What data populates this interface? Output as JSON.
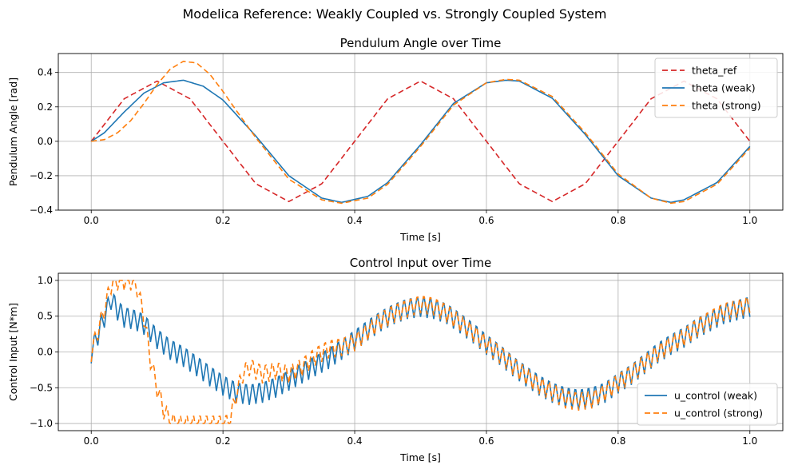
{
  "figure": {
    "suptitle": "Modelica Reference: Weakly Coupled vs. Strongly Coupled System"
  },
  "colors": {
    "ref": "#d62728",
    "weak": "#1f77b4",
    "strong": "#ff7f0e",
    "grid": "#b0b0b0",
    "axis": "#000000"
  },
  "chart_data": [
    {
      "type": "line",
      "title": "Pendulum Angle over Time",
      "xlabel": "Time [s]",
      "ylabel": "Pendulum Angle [rad]",
      "xlim": [
        -0.05,
        1.05
      ],
      "ylim": [
        -0.4,
        0.51
      ],
      "xticks": [
        0.0,
        0.2,
        0.4,
        0.6,
        0.8,
        1.0
      ],
      "xtick_labels": [
        "0.0",
        "0.2",
        "0.4",
        "0.6",
        "0.8",
        "1.0"
      ],
      "yticks": [
        -0.4,
        -0.2,
        0.0,
        0.2,
        0.4
      ],
      "ytick_labels": [
        "−0.4",
        "−0.2",
        "0.0",
        "0.2",
        "0.4"
      ],
      "grid": true,
      "legend_position": "upper right",
      "series": [
        {
          "name": "theta_ref",
          "style": "dashed",
          "color": "#d62728",
          "x": [
            0,
            0.05,
            0.1,
            0.15,
            0.2,
            0.25,
            0.3,
            0.35,
            0.4,
            0.45,
            0.5,
            0.55,
            0.6,
            0.65,
            0.7,
            0.75,
            0.8,
            0.85,
            0.9,
            0.95,
            1.0
          ],
          "y": [
            0,
            0.247,
            0.35,
            0.247,
            0,
            -0.247,
            -0.35,
            -0.247,
            0,
            0.247,
            0.35,
            0.247,
            0,
            -0.247,
            -0.35,
            -0.247,
            0,
            0.247,
            0.35,
            0.247,
            0
          ]
        },
        {
          "name": "theta (weak)",
          "style": "solid",
          "color": "#1f77b4",
          "x": [
            0,
            0.02,
            0.05,
            0.08,
            0.11,
            0.14,
            0.17,
            0.2,
            0.25,
            0.3,
            0.35,
            0.38,
            0.42,
            0.45,
            0.5,
            0.55,
            0.6,
            0.63,
            0.65,
            0.7,
            0.75,
            0.8,
            0.85,
            0.88,
            0.9,
            0.95,
            1.0
          ],
          "y": [
            0,
            0.05,
            0.17,
            0.28,
            0.34,
            0.355,
            0.32,
            0.24,
            0.03,
            -0.2,
            -0.33,
            -0.355,
            -0.32,
            -0.24,
            -0.02,
            0.22,
            0.34,
            0.355,
            0.35,
            0.25,
            0.04,
            -0.2,
            -0.33,
            -0.355,
            -0.34,
            -0.24,
            -0.03
          ]
        },
        {
          "name": "theta (strong)",
          "style": "dashed",
          "color": "#ff7f0e",
          "x": [
            0,
            0.02,
            0.04,
            0.06,
            0.08,
            0.1,
            0.12,
            0.14,
            0.16,
            0.18,
            0.2,
            0.22,
            0.25,
            0.3,
            0.35,
            0.38,
            0.42,
            0.45,
            0.5,
            0.55,
            0.6,
            0.63,
            0.65,
            0.7,
            0.75,
            0.8,
            0.85,
            0.88,
            0.9,
            0.95,
            1.0
          ],
          "y": [
            0,
            0.01,
            0.05,
            0.12,
            0.22,
            0.33,
            0.42,
            0.465,
            0.455,
            0.39,
            0.29,
            0.18,
            0.02,
            -0.22,
            -0.34,
            -0.36,
            -0.33,
            -0.25,
            -0.03,
            0.21,
            0.34,
            0.36,
            0.355,
            0.26,
            0.05,
            -0.19,
            -0.33,
            -0.36,
            -0.35,
            -0.25,
            -0.04
          ]
        }
      ]
    },
    {
      "type": "line",
      "title": "Control Input over Time",
      "xlabel": "Time [s]",
      "ylabel": "Control Input [N*m]",
      "xlim": [
        -0.05,
        1.05
      ],
      "ylim": [
        -1.1,
        1.1
      ],
      "xticks": [
        0.0,
        0.2,
        0.4,
        0.6,
        0.8,
        1.0
      ],
      "xtick_labels": [
        "0.0",
        "0.2",
        "0.4",
        "0.6",
        "0.8",
        "1.0"
      ],
      "yticks": [
        -1.0,
        -0.5,
        0.0,
        0.5,
        1.0
      ],
      "ytick_labels": [
        "−1.0",
        "−0.5",
        "0.0",
        "0.5",
        "1.0"
      ],
      "grid": true,
      "legend_position": "lower right",
      "series": [
        {
          "name": "u_control (weak)",
          "style": "solid",
          "color": "#1f77b4",
          "x": [
            0,
            0.02,
            0.03,
            0.04,
            0.05,
            0.06,
            0.07,
            0.08,
            0.09,
            0.1,
            0.12,
            0.14,
            0.16,
            0.18,
            0.2,
            0.22,
            0.24,
            0.26,
            0.28,
            0.3,
            0.32,
            0.34,
            0.36,
            0.38,
            0.4,
            0.42,
            0.44,
            0.46,
            0.48,
            0.5,
            0.52,
            0.54,
            0.56,
            0.58,
            0.6,
            0.62,
            0.64,
            0.66,
            0.68,
            0.7,
            0.72,
            0.74,
            0.76,
            0.78,
            0.8,
            0.82,
            0.84,
            0.86,
            0.88,
            0.9,
            0.92,
            0.94,
            0.96,
            0.98,
            1.0
          ],
          "y": [
            0,
            0.5,
            0.75,
            0.6,
            0.5,
            0.48,
            0.45,
            0.4,
            0.3,
            0.2,
            0.05,
            -0.05,
            -0.18,
            -0.32,
            -0.45,
            -0.55,
            -0.58,
            -0.55,
            -0.48,
            -0.38,
            -0.28,
            -0.18,
            -0.08,
            0.05,
            0.18,
            0.32,
            0.45,
            0.55,
            0.62,
            0.65,
            0.62,
            0.55,
            0.42,
            0.28,
            0.12,
            -0.02,
            -0.18,
            -0.32,
            -0.45,
            -0.55,
            -0.62,
            -0.65,
            -0.62,
            -0.55,
            -0.42,
            -0.3,
            -0.15,
            0.0,
            0.12,
            0.22,
            0.35,
            0.45,
            0.55,
            0.6,
            0.65
          ],
          "ripple": 0.16
        },
        {
          "name": "u_control (strong)",
          "style": "dashed",
          "color": "#ff7f0e",
          "x": [
            0,
            0.02,
            0.03,
            0.04,
            0.05,
            0.06,
            0.07,
            0.08,
            0.09,
            0.1,
            0.11,
            0.12,
            0.13,
            0.15,
            0.18,
            0.2,
            0.21,
            0.22,
            0.23,
            0.24,
            0.26,
            0.28,
            0.3,
            0.32,
            0.34,
            0.36,
            0.38,
            0.4,
            0.42,
            0.44,
            0.46,
            0.48,
            0.5,
            0.52,
            0.54,
            0.56,
            0.58,
            0.6,
            0.62,
            0.64,
            0.66,
            0.68,
            0.7,
            0.72,
            0.74,
            0.76,
            0.78,
            0.8,
            0.82,
            0.84,
            0.86,
            0.88,
            0.9,
            0.92,
            0.94,
            0.96,
            0.98,
            1.0
          ],
          "y": [
            0,
            0.6,
            0.95,
            1.0,
            1.0,
            1.0,
            0.9,
            0.5,
            -0.1,
            -0.5,
            -0.8,
            -0.95,
            -1.0,
            -1.0,
            -1.0,
            -1.0,
            -0.98,
            -0.6,
            -0.3,
            -0.2,
            -0.3,
            -0.25,
            -0.3,
            -0.2,
            -0.05,
            0.05,
            0.08,
            0.15,
            0.3,
            0.45,
            0.55,
            0.62,
            0.68,
            0.65,
            0.55,
            0.42,
            0.28,
            0.12,
            -0.02,
            -0.18,
            -0.32,
            -0.45,
            -0.55,
            -0.65,
            -0.68,
            -0.65,
            -0.55,
            -0.42,
            -0.3,
            -0.15,
            0.0,
            0.12,
            0.22,
            0.35,
            0.47,
            0.57,
            0.62,
            0.68
          ],
          "ripple": 0.14
        }
      ]
    }
  ]
}
